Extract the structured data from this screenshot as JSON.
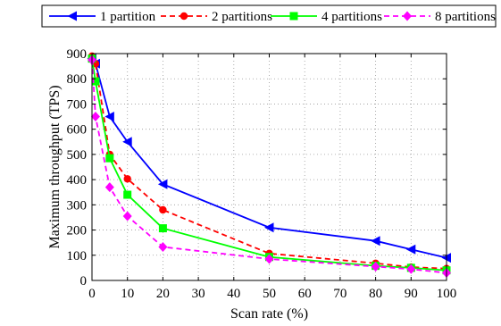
{
  "chart_data": {
    "type": "line",
    "title": "",
    "xlabel": "Scan rate (%)",
    "ylabel": "Maximum throughput (TPS)",
    "xlim": [
      0,
      100
    ],
    "ylim": [
      0,
      900
    ],
    "xticks": [
      0,
      10,
      20,
      30,
      40,
      50,
      60,
      70,
      80,
      90,
      100
    ],
    "yticks": [
      0,
      100,
      200,
      300,
      400,
      500,
      600,
      700,
      800,
      900
    ],
    "grid": true,
    "legend_position": "top, outside plot area, single row",
    "series": [
      {
        "name": "1 partition",
        "color": "#0000ff",
        "dash": "solid",
        "marker": "left-triangle",
        "x": [
          0,
          1,
          5,
          10,
          20,
          50,
          80,
          90,
          100
        ],
        "y": [
          880,
          860,
          650,
          550,
          382,
          210,
          157,
          123,
          90
        ]
      },
      {
        "name": "2 partitions",
        "color": "#ff0000",
        "dash": "dashed",
        "marker": "circle",
        "x": [
          0,
          1,
          5,
          10,
          20,
          50,
          80,
          90,
          100
        ],
        "y": [
          890,
          860,
          500,
          403,
          280,
          107,
          68,
          53,
          47
        ]
      },
      {
        "name": "4 partitions",
        "color": "#00ff00",
        "dash": "solid",
        "marker": "square",
        "x": [
          0,
          1,
          5,
          10,
          20,
          50,
          80,
          90,
          100
        ],
        "y": [
          880,
          790,
          485,
          340,
          207,
          93,
          58,
          50,
          40
        ]
      },
      {
        "name": "8 partitions",
        "color": "#ff00ff",
        "dash": "dashed",
        "marker": "diamond",
        "x": [
          0,
          1,
          5,
          10,
          20,
          50,
          80,
          90,
          100
        ],
        "y": [
          875,
          650,
          370,
          255,
          133,
          85,
          55,
          45,
          30
        ]
      }
    ]
  }
}
